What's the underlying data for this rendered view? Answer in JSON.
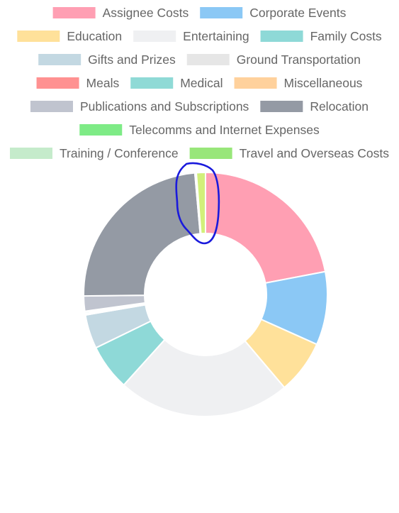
{
  "chart_data": {
    "type": "doughnut",
    "title": "",
    "legend_position": "top",
    "series": [
      {
        "label": "Assignee Costs",
        "value": 22.0,
        "color": "#ff9fb3"
      },
      {
        "label": "Corporate Events",
        "value": 9.7,
        "color": "#8bc8f5"
      },
      {
        "label": "Education",
        "value": 7.1,
        "color": "#ffe19a"
      },
      {
        "label": "Entertaining",
        "value": 22.9,
        "color": "#eff0f2"
      },
      {
        "label": "Family Costs",
        "value": 6.1,
        "color": "#8ed9d7"
      },
      {
        "label": "Gifts and Prizes",
        "value": 4.5,
        "color": "#c3d8e2"
      },
      {
        "label": "Ground Transportation",
        "value": 0.1,
        "color": "#e6e6e6"
      },
      {
        "label": "Meals",
        "value": 0.1,
        "color": "#ff9191"
      },
      {
        "label": "Medical",
        "value": 0.2,
        "color": "#8fdad6"
      },
      {
        "label": "Miscellaneous",
        "value": 0.1,
        "color": "#ffd19c"
      },
      {
        "label": "Publications and Subscriptions",
        "value": 2.0,
        "color": "#c0c4cf"
      },
      {
        "label": "Relocation",
        "value": 23.8,
        "color": "#949aa4"
      },
      {
        "label": "Telecomms and Internet Expenses",
        "value": 0.1,
        "color": "#7eeb86"
      },
      {
        "label": "Training / Conference",
        "value": 0.1,
        "color": "#c5ebcb"
      },
      {
        "label": "Travel and Overseas Costs",
        "value": 1.2,
        "color": "#d2f07a"
      }
    ],
    "legend_box_colors": {
      "Travel and Overseas Costs": "#98e67a"
    },
    "annotation_color": "#1a1adc"
  }
}
